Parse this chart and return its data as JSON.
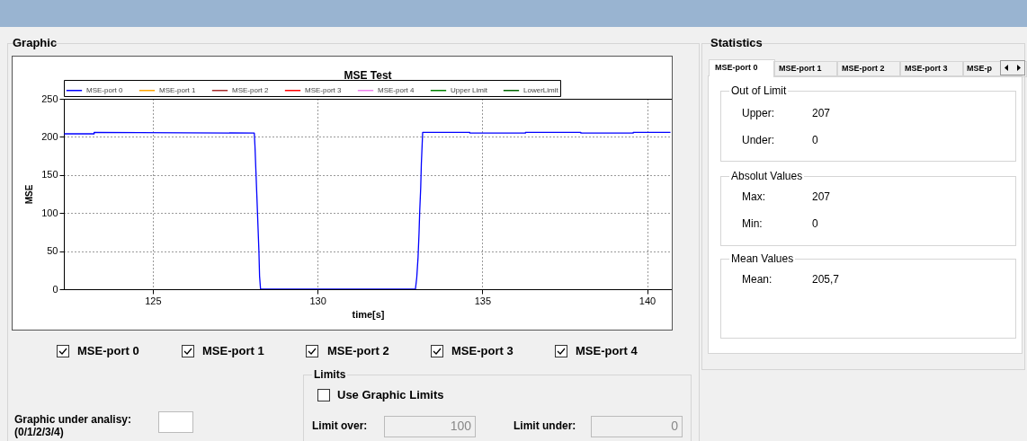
{
  "chart_data": {
    "type": "line",
    "title": "MSE Test",
    "xlabel": "time[s]",
    "ylabel": "MSE",
    "xlim": [
      122.3,
      140.75
    ],
    "xticks": [
      125,
      130,
      135,
      140
    ],
    "ylim": [
      0,
      250
    ],
    "yticks": [
      0,
      50,
      100,
      150,
      200,
      250
    ],
    "grid": true,
    "legend": "top",
    "marker": "none",
    "line_style": "solid",
    "series": [
      {
        "name": "MSE-port 0",
        "color": "#0000ff",
        "x": [
          122.31,
          123.22,
          123.22,
          128.08,
          128.1,
          128.13,
          128.16,
          128.19,
          128.22,
          128.24,
          128.27,
          132.97,
          133.01,
          133.05,
          133.08,
          133.1,
          133.13,
          133.15,
          133.19,
          134.62,
          134.62,
          136.31,
          136.31,
          137.99,
          137.99,
          139.58,
          139.58,
          140.71
        ],
        "values": [
          204,
          204,
          206,
          205,
          188,
          154,
          120,
          85,
          50,
          17,
          0,
          0,
          15,
          42,
          74,
          102,
          133,
          165,
          206,
          206,
          205,
          205,
          206,
          206,
          205,
          205,
          206,
          206
        ]
      },
      {
        "name": "MSE-port 1",
        "color": "#ffa500"
      },
      {
        "name": "MSE-port 2",
        "color": "#a52a2a"
      },
      {
        "name": "MSE-port 3",
        "color": "#ff0000"
      },
      {
        "name": "MSE-port 4",
        "color": "#ee82ee"
      },
      {
        "name": "Upper Limit",
        "color": "#008000"
      },
      {
        "name": "LowerLimit",
        "color": "#006400"
      }
    ],
    "annotations": [
      "Graphic",
      "Statistics",
      "MSE-port 0",
      "MSE-port 1",
      "MSE-port 2",
      "MSE-port 3",
      "MSE-p",
      "Out of Limit",
      "Upper:",
      "207",
      "Under:",
      "0",
      "Absolut Values",
      "Max:",
      "207",
      "Min:",
      "0",
      "Mean Values",
      "Mean:",
      "205,7",
      "MSE-port 0",
      "MSE-port 1",
      "MSE-port 2",
      "MSE-port 3",
      "MSE-port 4",
      "Limits",
      "Use Graphic Limits",
      "Limit over:",
      "100",
      "Limit under:",
      "0",
      "Graphic under analisy:",
      "(0/1/2/3/4)"
    ]
  }
}
